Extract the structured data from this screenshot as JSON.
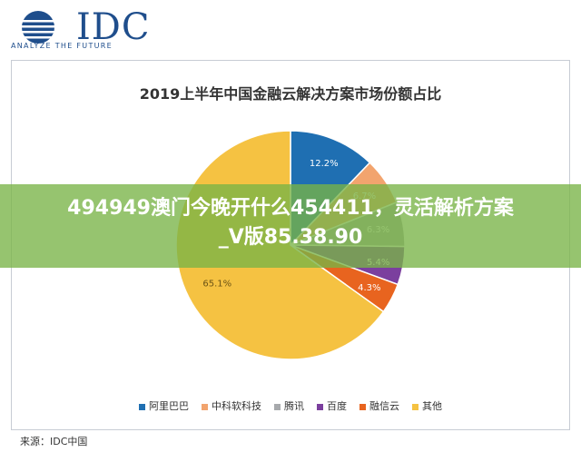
{
  "header": {
    "logo_text": "IDC",
    "logo_tagline": "ANALYZE THE FUTURE"
  },
  "banner": {
    "line1": "494949澳门今晚开什么454411，灵活解析方案",
    "line2": "_V版85.38.90"
  },
  "colors": {
    "brand": "#1f4e8c",
    "banner": "#78b446"
  },
  "chart_data": {
    "type": "pie",
    "title": "2019上半年中国金融云解决方案市场份额占比",
    "slices": [
      {
        "name": "阿里巴巴",
        "value": 12.2,
        "label": "12.2%",
        "color": "#1f6fb2"
      },
      {
        "name": "中科软科技",
        "value": 6.7,
        "label": "6.7%",
        "color": "#f2a46e"
      },
      {
        "name": "腾讯",
        "value": 6.3,
        "label": "6.3%",
        "color": "#a7a9ac"
      },
      {
        "name": "百度",
        "value": 5.4,
        "label": "5.4%",
        "color": "#7b3f9e"
      },
      {
        "name": "融信云",
        "value": 4.3,
        "label": "4.3%",
        "color": "#e8641f"
      },
      {
        "name": "其他",
        "value": 65.1,
        "label": "65.1%",
        "color": "#f5c242"
      }
    ],
    "legend_position": "bottom",
    "source": "来源：IDC中国"
  }
}
